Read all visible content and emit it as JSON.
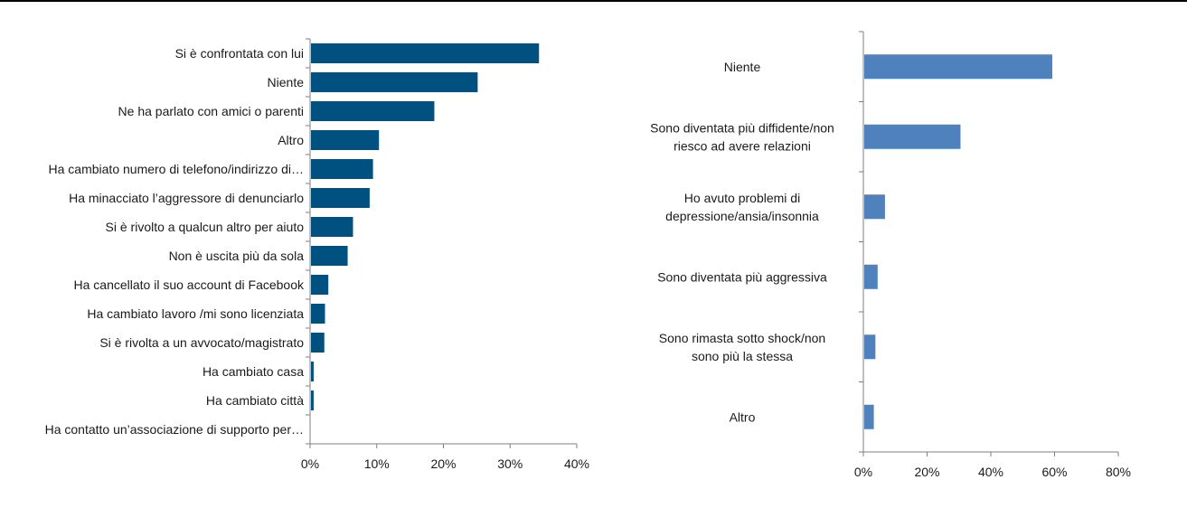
{
  "colors": {
    "left_bars": "#00517F",
    "right_bars": "#4F81BD",
    "axis": "#7f7f7f",
    "top_rule": "#000000"
  },
  "chart_data": [
    {
      "type": "bar",
      "orientation": "horizontal",
      "title": "",
      "xlabel": "",
      "ylabel": "",
      "xlim": [
        0,
        40
      ],
      "x_ticks": [
        "0%",
        "10%",
        "20%",
        "30%",
        "40%"
      ],
      "grid": false,
      "categories": [
        "Si è confrontata con lui",
        "Niente",
        "Ne ha parlato con amici o parenti",
        "Altro",
        "Ha cambiato numero di telefono/indirizzo di…",
        "Ha minacciato l’aggressore di denunciarlo",
        "Si è rivolto a qualcun altro per aiuto",
        "Non è uscita più da sola",
        "Ha cancellato il suo account di Facebook",
        "Ha cambiato lavoro /mi sono licenziata",
        "Si è rivolta a un avvocato/magistrato",
        "Ha cambiato casa",
        "Ha cambiato città",
        "Ha contatto un’associazione di supporto per…"
      ],
      "values": [
        34.2,
        25.0,
        18.5,
        10.2,
        9.3,
        8.8,
        6.3,
        5.5,
        2.6,
        2.1,
        2.0,
        0.4,
        0.4,
        0.0
      ]
    },
    {
      "type": "bar",
      "orientation": "horizontal",
      "title": "",
      "xlabel": "",
      "ylabel": "",
      "xlim": [
        0,
        80
      ],
      "x_ticks": [
        "0%",
        "20%",
        "40%",
        "60%",
        "80%"
      ],
      "grid": false,
      "categories": [
        [
          "Niente"
        ],
        [
          "Sono diventata più diffidente/non",
          "riesco ad avere relazioni"
        ],
        [
          "Ho avuto problemi di",
          "depressione/ansia/insonnia"
        ],
        [
          "Sono diventata più aggressiva"
        ],
        [
          "Sono rimasta sotto shock/non",
          "sono più la stessa"
        ],
        [
          "Altro"
        ]
      ],
      "values": [
        59.0,
        30.2,
        6.5,
        4.2,
        3.5,
        3.0
      ]
    }
  ]
}
